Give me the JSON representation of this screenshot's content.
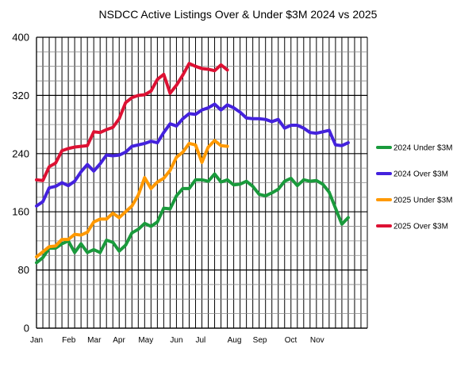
{
  "chart_data": {
    "type": "line",
    "title": "NSDCC Active Listings Over & Under $3M 2024 vs 2025",
    "xlabel": "",
    "ylabel": "",
    "ylim": [
      0,
      400
    ],
    "yticks": [
      0,
      80,
      160,
      240,
      320,
      400
    ],
    "xlim": [
      0,
      52
    ],
    "x_tick_labels": [
      {
        "label": "Jan",
        "x": 0
      },
      {
        "label": "Feb",
        "x": 5
      },
      {
        "label": "Mar",
        "x": 9
      },
      {
        "label": "Apr",
        "x": 13
      },
      {
        "label": "May",
        "x": 17
      },
      {
        "label": "Jun",
        "x": 22
      },
      {
        "label": "Jul",
        "x": 26
      },
      {
        "label": "Aug",
        "x": 31
      },
      {
        "label": "Sep",
        "x": 35
      },
      {
        "label": "Oct",
        "x": 40
      },
      {
        "label": "Nov",
        "x": 44
      }
    ],
    "grid": true,
    "legend_position": "right",
    "series": [
      {
        "name": "2024 Under $3M",
        "color": "#1a9a3c",
        "values": [
          90,
          97,
          110,
          110,
          116,
          120,
          104,
          116,
          104,
          108,
          104,
          121,
          118,
          106,
          114,
          131,
          136,
          144,
          140,
          146,
          165,
          164,
          182,
          192,
          192,
          204,
          204,
          202,
          212,
          201,
          204,
          197,
          198,
          202,
          195,
          184,
          182,
          186,
          191,
          202,
          206,
          196,
          204,
          202,
          203,
          198,
          187,
          165,
          143,
          152
        ]
      },
      {
        "name": "2024 Over $3M",
        "color": "#4422dd",
        "values": [
          168,
          174,
          193,
          195,
          200,
          196,
          202,
          215,
          225,
          216,
          226,
          238,
          237,
          238,
          242,
          250,
          252,
          254,
          257,
          255,
          269,
          281,
          278,
          288,
          295,
          294,
          300,
          303,
          308,
          300,
          307,
          303,
          297,
          289,
          288,
          288,
          287,
          284,
          287,
          275,
          279,
          279,
          275,
          269,
          268,
          270,
          272,
          252,
          251,
          255
        ]
      },
      {
        "name": "2025 Under $3M",
        "color": "#ff9900",
        "values": [
          98,
          105,
          112,
          113,
          122,
          122,
          129,
          128,
          132,
          146,
          150,
          150,
          158,
          152,
          160,
          168,
          183,
          207,
          192,
          201,
          206,
          217,
          235,
          242,
          254,
          252,
          228,
          249,
          258,
          251,
          250
        ]
      },
      {
        "name": "2025 Over $3M",
        "color": "#dd1133",
        "values": [
          204,
          203,
          222,
          227,
          244,
          247,
          249,
          250,
          251,
          270,
          269,
          273,
          276,
          288,
          310,
          317,
          320,
          321,
          326,
          342,
          349,
          323,
          334,
          348,
          364,
          360,
          357,
          356,
          354,
          362,
          355
        ]
      }
    ]
  }
}
